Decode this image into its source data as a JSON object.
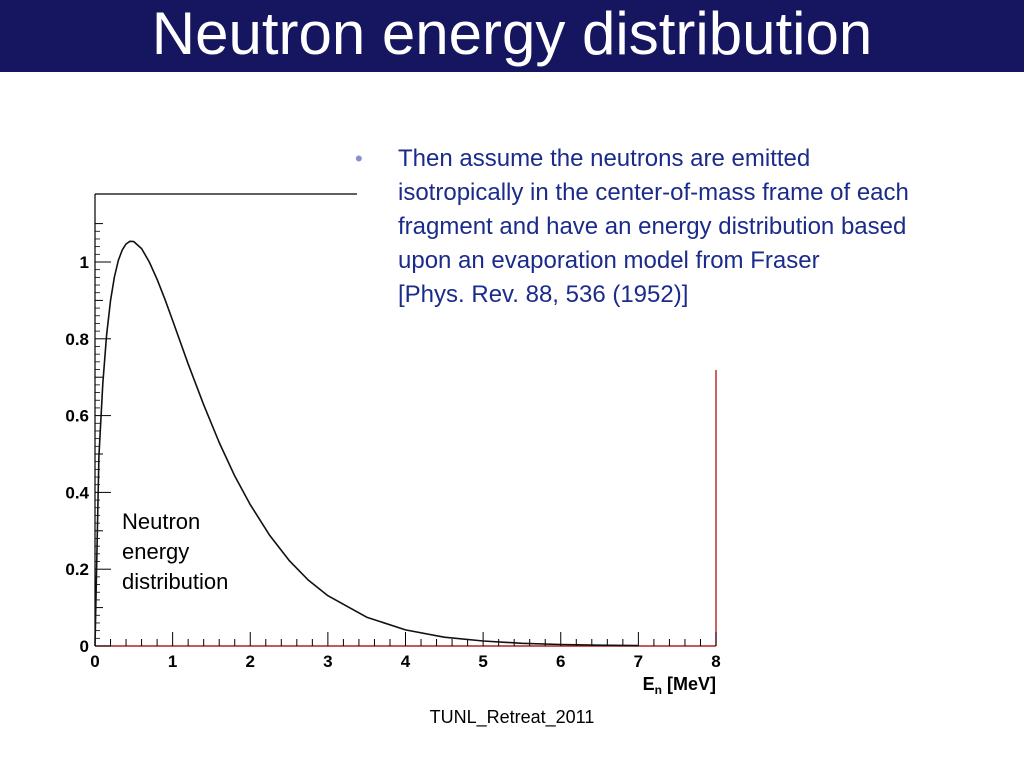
{
  "slide": {
    "title": "Neutron energy distribution",
    "bullet_lines": [
      "Then assume the neutrons are emitted",
      "isotropically in the center-of-mass frame of each",
      "fragment and have an energy distribution based",
      "upon an evaporation model from Fraser",
      "[Phys. Rev. 88, 536 (1952)]"
    ],
    "footer": "TUNL_Retreat_2011",
    "plot_note_lines": [
      "Neutron",
      "energy",
      "distribution"
    ]
  },
  "chart_data": {
    "type": "line",
    "xlabel": "E",
    "xlabel_sub": "n",
    "xlabel_unit": "[MeV]",
    "ylabel": "",
    "xlim": [
      0,
      8
    ],
    "ylim": [
      0,
      1.1
    ],
    "x_ticks": [
      "0",
      "1",
      "2",
      "3",
      "4",
      "5",
      "6",
      "7",
      "8"
    ],
    "y_ticks": [
      "0",
      "0.2",
      "0.4",
      "0.6",
      "0.8",
      "1"
    ],
    "grid": false,
    "series": [
      {
        "color": "#111111",
        "x": [
          0.0,
          0.05,
          0.1,
          0.15,
          0.2,
          0.25,
          0.3,
          0.35,
          0.4,
          0.45,
          0.5,
          0.6,
          0.7,
          0.8,
          0.9,
          1.0,
          1.2,
          1.4,
          1.6,
          1.8,
          2.0,
          2.25,
          2.5,
          2.75,
          3.0,
          3.5,
          4.0,
          4.5,
          5.0,
          5.5,
          6.0,
          6.5,
          7.0
        ],
        "y": [
          0.0,
          0.493,
          0.683,
          0.81,
          0.899,
          0.961,
          1.004,
          1.031,
          1.047,
          1.054,
          1.053,
          1.035,
          1.0,
          0.955,
          0.903,
          0.848,
          0.735,
          0.628,
          0.53,
          0.443,
          0.368,
          0.288,
          0.223,
          0.171,
          0.131,
          0.075,
          0.042,
          0.023,
          0.013,
          0.007,
          0.004,
          0.002,
          0.001
        ]
      }
    ],
    "colors": {
      "axis": "#000000",
      "baseline": "#b22222"
    }
  }
}
